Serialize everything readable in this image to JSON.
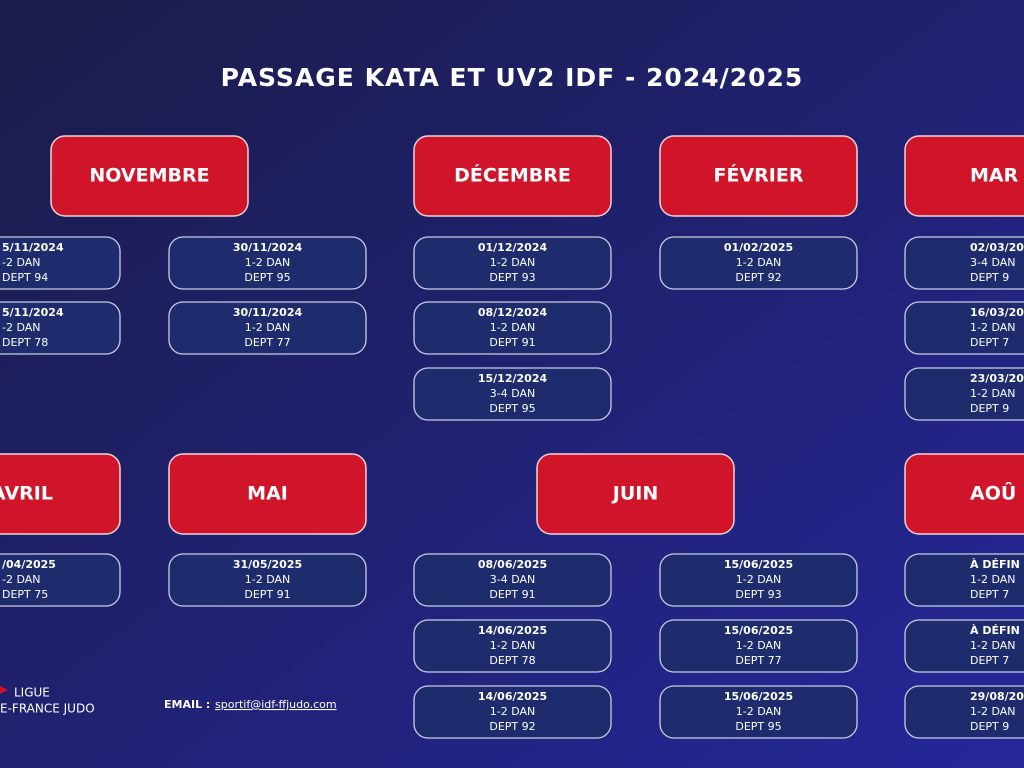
{
  "title": "PASSAGE KATA ET UV2 IDF - 2024/2025",
  "months": [
    {
      "name": "NOVEMBRE",
      "sessions": [
        {
          "date": "5/11/2024",
          "level": "-2 DAN",
          "dept": "DEPT 94"
        },
        {
          "date": "5/11/2024",
          "level": "-2 DAN",
          "dept": "DEPT 78"
        },
        {
          "date": "30/11/2024",
          "level": "1-2 DAN",
          "dept": "DEPT 95"
        },
        {
          "date": "30/11/2024",
          "level": "1-2 DAN",
          "dept": "DEPT 77"
        }
      ]
    },
    {
      "name": "DÉCEMBRE",
      "sessions": [
        {
          "date": "01/12/2024",
          "level": "1-2 DAN",
          "dept": "DEPT 93"
        },
        {
          "date": "08/12/2024",
          "level": "1-2 DAN",
          "dept": "DEPT 91"
        },
        {
          "date": "15/12/2024",
          "level": "3-4 DAN",
          "dept": "DEPT 95"
        }
      ]
    },
    {
      "name": "FÉVRIER",
      "sessions": [
        {
          "date": "01/02/2025",
          "level": "1-2 DAN",
          "dept": "DEPT 92"
        }
      ]
    },
    {
      "name": "MAR",
      "sessions": [
        {
          "date": "02/03/20",
          "level": "3-4 DAN",
          "dept": "DEPT 9"
        },
        {
          "date": "16/03/20",
          "level": "1-2 DAN",
          "dept": "DEPT 7"
        },
        {
          "date": "23/03/20",
          "level": "1-2 DAN",
          "dept": "DEPT 9"
        }
      ]
    },
    {
      "name": "AVRIL",
      "sessions": [
        {
          "date": "/04/2025",
          "level": "-2 DAN",
          "dept": "DEPT 75"
        }
      ]
    },
    {
      "name": "MAI",
      "sessions": [
        {
          "date": "31/05/2025",
          "level": "1-2 DAN",
          "dept": "DEPT 91"
        }
      ]
    },
    {
      "name": "JUIN",
      "sessions": [
        {
          "date": "08/06/2025",
          "level": "3-4 DAN",
          "dept": "DEPT 91"
        },
        {
          "date": "14/06/2025",
          "level": "1-2 DAN",
          "dept": "DEPT 78"
        },
        {
          "date": "14/06/2025",
          "level": "1-2 DAN",
          "dept": "DEPT 92"
        },
        {
          "date": "15/06/2025",
          "level": "1-2 DAN",
          "dept": "DEPT 93"
        },
        {
          "date": "15/06/2025",
          "level": "1-2 DAN",
          "dept": "DEPT 77"
        },
        {
          "date": "15/06/2025",
          "level": "1-2 DAN",
          "dept": "DEPT 95"
        }
      ]
    },
    {
      "name": "AOÛ",
      "sessions": [
        {
          "date": "À DÉFIN",
          "level": "1-2 DAN",
          "dept": "DEPT 7"
        },
        {
          "date": "À DÉFIN",
          "level": "1-2 DAN",
          "dept": "DEPT 7"
        },
        {
          "date": "29/08/20",
          "level": "1-2 DAN",
          "dept": "DEPT 9"
        }
      ]
    }
  ],
  "logo": {
    "line1": "LIGUE",
    "line2": "E-FRANCE JUDO"
  },
  "email": {
    "label": "EMAIL :",
    "address": "sportif@idf-ffjudo.com"
  }
}
